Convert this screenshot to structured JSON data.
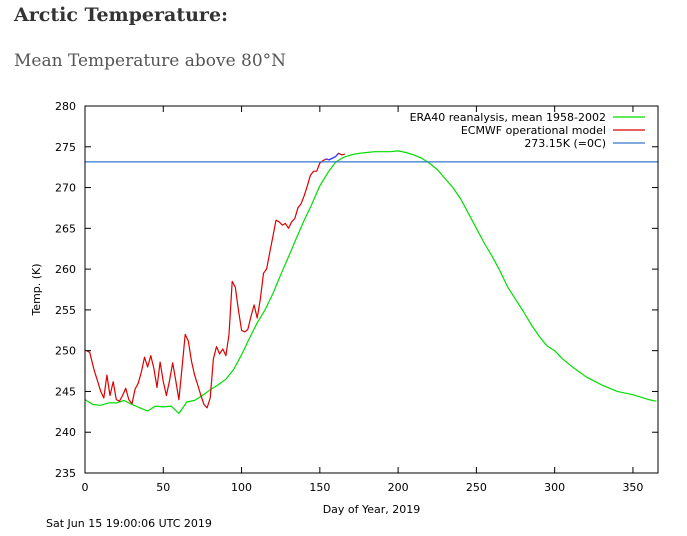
{
  "page": {
    "heading": "Arctic Temperature:",
    "subheading": "Mean Temperature above 80°N",
    "timestamp": "Sat Jun 15 19:00:06 UTC 2019"
  },
  "chart_data": {
    "type": "line",
    "xlabel": "Day of Year, 2019",
    "ylabel": "Temp. (K)",
    "xlim": [
      0,
      366
    ],
    "ylim": [
      235,
      280
    ],
    "xticks": [
      0,
      50,
      100,
      150,
      200,
      250,
      300,
      350
    ],
    "yticks": [
      235,
      240,
      245,
      250,
      255,
      260,
      265,
      270,
      275,
      280
    ],
    "grid": false,
    "legend_position": "top-right",
    "colors": {
      "era40": "#00dd00",
      "ecmwf": "#dd0000",
      "freezing": "#3377cc",
      "blue_overlap": "#4040ff"
    },
    "series": [
      {
        "name": "ERA40 reanalysis, mean 1958-2002",
        "x": [
          0,
          5,
          10,
          15,
          20,
          25,
          30,
          35,
          40,
          45,
          50,
          55,
          60,
          65,
          70,
          75,
          80,
          85,
          90,
          95,
          100,
          105,
          110,
          115,
          120,
          125,
          130,
          135,
          140,
          145,
          150,
          155,
          160,
          165,
          170,
          175,
          180,
          185,
          190,
          195,
          200,
          205,
          210,
          215,
          220,
          225,
          230,
          235,
          240,
          245,
          250,
          255,
          260,
          265,
          270,
          275,
          280,
          285,
          290,
          295,
          300,
          305,
          310,
          315,
          320,
          325,
          330,
          335,
          340,
          345,
          350,
          355,
          360,
          365
        ],
        "y": [
          244.0,
          243.4,
          243.3,
          243.6,
          243.6,
          243.9,
          243.4,
          243.0,
          242.6,
          243.2,
          243.1,
          243.2,
          242.3,
          243.7,
          243.9,
          244.5,
          245.2,
          245.8,
          246.5,
          247.7,
          249.5,
          251.5,
          253.4,
          255.0,
          257.0,
          259.3,
          261.5,
          263.8,
          266.0,
          268.0,
          270.2,
          271.8,
          273.1,
          273.7,
          274.0,
          274.2,
          274.3,
          274.4,
          274.4,
          274.4,
          274.5,
          274.3,
          274.0,
          273.6,
          273.0,
          272.2,
          271.1,
          270.0,
          268.6,
          266.8,
          265.0,
          263.2,
          261.6,
          259.8,
          257.8,
          256.3,
          254.8,
          253.2,
          251.8,
          250.6,
          250.0,
          249.0,
          248.2,
          247.5,
          246.8,
          246.3,
          245.8,
          245.4,
          245.0,
          244.8,
          244.6,
          244.3,
          244.0,
          243.8
        ]
      },
      {
        "name": "ECMWF operational model",
        "x": [
          1,
          3,
          6,
          8,
          10,
          12,
          14,
          16,
          18,
          20,
          22,
          24,
          26,
          28,
          30,
          32,
          34,
          36,
          38,
          40,
          42,
          44,
          46,
          48,
          50,
          52,
          54,
          56,
          58,
          60,
          62,
          64,
          66,
          68,
          70,
          72,
          74,
          76,
          78,
          80,
          82,
          84,
          86,
          88,
          90,
          92,
          94,
          96,
          98,
          100,
          102,
          104,
          106,
          108,
          110,
          112,
          114,
          116,
          118,
          120,
          122,
          124,
          126,
          128,
          130,
          132,
          134,
          136,
          138,
          140,
          142,
          144,
          146,
          148,
          150,
          152,
          154,
          156,
          158,
          160,
          162,
          164,
          166
        ],
        "y": [
          250.0,
          249.8,
          247.5,
          246.3,
          245.0,
          244.2,
          247.0,
          244.5,
          246.2,
          244.0,
          243.8,
          244.5,
          245.4,
          244.0,
          243.5,
          245.3,
          246.0,
          247.4,
          249.2,
          248.0,
          249.4,
          247.8,
          245.5,
          248.6,
          246.2,
          244.5,
          246.3,
          248.5,
          246.3,
          244.0,
          248.0,
          252.0,
          251.2,
          248.7,
          247.0,
          245.8,
          244.5,
          243.4,
          243.0,
          244.2,
          249.0,
          250.5,
          249.6,
          250.2,
          249.4,
          252.0,
          258.5,
          257.8,
          255.0,
          252.5,
          252.3,
          252.6,
          254.2,
          255.6,
          254.0,
          256.3,
          259.5,
          260.0,
          262.0,
          264.0,
          266.0,
          265.8,
          265.4,
          265.6,
          265.0,
          265.8,
          266.2,
          267.5,
          268.0,
          269.0,
          270.2,
          271.5,
          272.0,
          272.0,
          273.0,
          273.3,
          273.5,
          273.4,
          273.6,
          273.8,
          274.2,
          274.0,
          274.1
        ]
      },
      {
        "name": "273.15K (=0C)",
        "x": [
          0,
          366
        ],
        "y": [
          273.15,
          273.15
        ]
      }
    ]
  }
}
